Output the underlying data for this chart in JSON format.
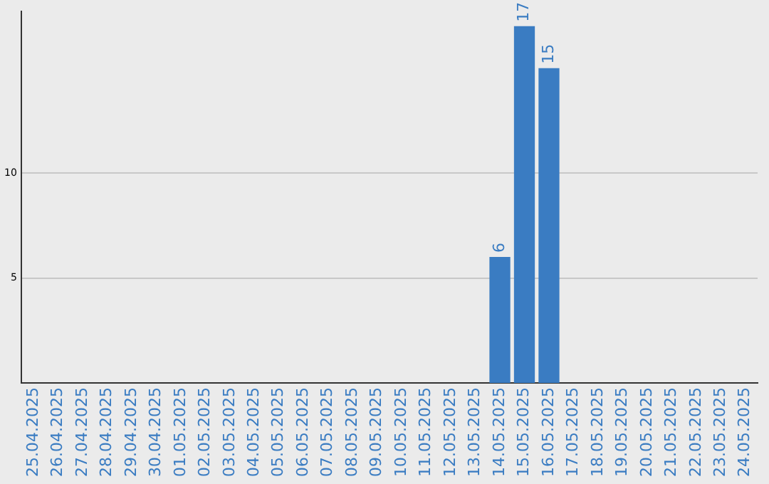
{
  "chart_data": {
    "type": "bar",
    "categories": [
      "25.04.2025",
      "26.04.2025",
      "27.04.2025",
      "28.04.2025",
      "29.04.2025",
      "30.04.2025",
      "01.05.2025",
      "02.05.2025",
      "03.05.2025",
      "04.05.2025",
      "05.05.2025",
      "06.05.2025",
      "07.05.2025",
      "08.05.2025",
      "09.05.2025",
      "10.05.2025",
      "11.05.2025",
      "12.05.2025",
      "13.05.2025",
      "14.05.2025",
      "15.05.2025",
      "16.05.2025",
      "17.05.2025",
      "18.05.2025",
      "19.05.2025",
      "20.05.2025",
      "21.05.2025",
      "22.05.2025",
      "23.05.2025",
      "24.05.2025"
    ],
    "values": [
      0,
      0,
      0,
      0,
      0,
      0,
      0,
      0,
      0,
      0,
      0,
      0,
      0,
      0,
      0,
      0,
      0,
      0,
      0,
      6,
      17,
      15,
      0,
      0,
      0,
      0,
      0,
      0,
      0,
      0
    ],
    "value_labels": [
      null,
      null,
      null,
      null,
      null,
      null,
      null,
      null,
      null,
      null,
      null,
      null,
      null,
      null,
      null,
      null,
      null,
      null,
      null,
      "6",
      "17",
      "15",
      null,
      null,
      null,
      null,
      null,
      null,
      null,
      null
    ],
    "color": "#3a7cc2",
    "ylim": [
      0,
      17.7
    ],
    "yticks": [
      5,
      10
    ],
    "grid": "y",
    "legend": false
  }
}
